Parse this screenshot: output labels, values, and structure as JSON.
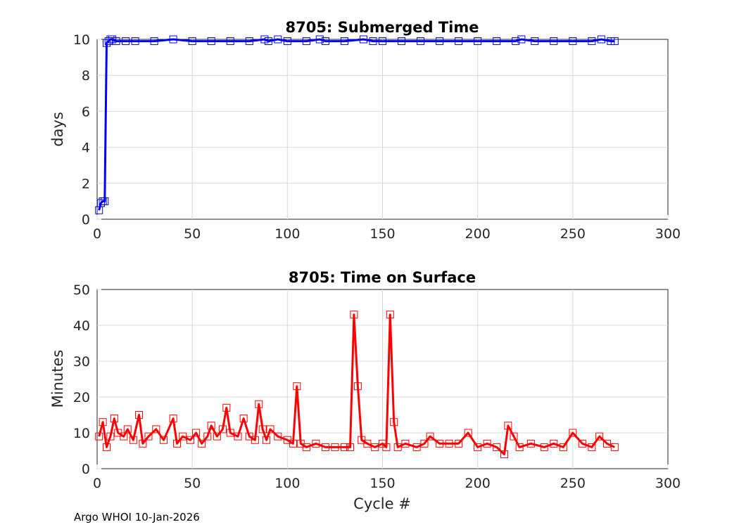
{
  "footer": {
    "note": "Argo WHOI 10-Jan-2026"
  },
  "chart_data": [
    {
      "type": "line",
      "title": "8705: Submerged Time",
      "xlabel": "",
      "ylabel": "days",
      "xlim": [
        0,
        300
      ],
      "ylim": [
        0,
        10
      ],
      "xticks": [
        0,
        50,
        100,
        150,
        200,
        250,
        300
      ],
      "yticks": [
        0,
        2,
        4,
        6,
        8,
        10
      ],
      "grid": true,
      "marker": "square",
      "color": "#0000ff",
      "series": [
        {
          "name": "Submerged Time",
          "points": [
            [
              1,
              0.5
            ],
            [
              2,
              0.9
            ],
            [
              3,
              1.0
            ],
            [
              4,
              1.0
            ],
            [
              5,
              9.8
            ],
            [
              6,
              9.9
            ],
            [
              7,
              10.0
            ],
            [
              8,
              10.0
            ],
            [
              10,
              9.9
            ],
            [
              15,
              9.9
            ],
            [
              20,
              9.9
            ],
            [
              30,
              9.9
            ],
            [
              40,
              10.0
            ],
            [
              50,
              9.9
            ],
            [
              60,
              9.9
            ],
            [
              70,
              9.9
            ],
            [
              80,
              9.9
            ],
            [
              88,
              10.0
            ],
            [
              90,
              9.9
            ],
            [
              95,
              10.0
            ],
            [
              100,
              9.9
            ],
            [
              110,
              9.9
            ],
            [
              117,
              10.0
            ],
            [
              120,
              9.9
            ],
            [
              130,
              9.9
            ],
            [
              140,
              10.0
            ],
            [
              145,
              9.9
            ],
            [
              150,
              9.9
            ],
            [
              160,
              9.9
            ],
            [
              170,
              9.9
            ],
            [
              180,
              9.9
            ],
            [
              190,
              9.9
            ],
            [
              200,
              9.9
            ],
            [
              210,
              9.9
            ],
            [
              220,
              9.9
            ],
            [
              223,
              10.0
            ],
            [
              230,
              9.9
            ],
            [
              240,
              9.9
            ],
            [
              250,
              9.9
            ],
            [
              260,
              9.9
            ],
            [
              265,
              10.0
            ],
            [
              270,
              9.9
            ],
            [
              272,
              9.9
            ]
          ]
        }
      ]
    },
    {
      "type": "line",
      "title": "8705: Time on Surface",
      "xlabel": "Cycle #",
      "ylabel": "Minutes",
      "xlim": [
        0,
        300
      ],
      "ylim": [
        0,
        50
      ],
      "xticks": [
        0,
        50,
        100,
        150,
        200,
        250,
        300
      ],
      "yticks": [
        0,
        10,
        20,
        30,
        40,
        50
      ],
      "grid": true,
      "marker": "square",
      "color": "#ff0000",
      "series": [
        {
          "name": "Time on Surface",
          "points": [
            [
              1,
              9
            ],
            [
              3,
              13
            ],
            [
              5,
              6
            ],
            [
              7,
              9
            ],
            [
              9,
              14
            ],
            [
              11,
              10
            ],
            [
              14,
              9
            ],
            [
              16,
              11
            ],
            [
              19,
              8
            ],
            [
              22,
              15
            ],
            [
              24,
              7
            ],
            [
              27,
              9
            ],
            [
              31,
              11
            ],
            [
              35,
              8
            ],
            [
              40,
              14
            ],
            [
              42,
              7
            ],
            [
              45,
              9
            ],
            [
              49,
              8
            ],
            [
              52,
              10
            ],
            [
              55,
              7
            ],
            [
              58,
              9
            ],
            [
              60,
              12
            ],
            [
              63,
              9
            ],
            [
              66,
              11
            ],
            [
              68,
              17
            ],
            [
              70,
              10
            ],
            [
              74,
              9
            ],
            [
              77,
              14
            ],
            [
              80,
              9
            ],
            [
              83,
              8
            ],
            [
              85,
              18
            ],
            [
              87,
              11
            ],
            [
              89,
              8
            ],
            [
              91,
              11
            ],
            [
              95,
              9
            ],
            [
              100,
              8
            ],
            [
              103,
              7
            ],
            [
              105,
              23
            ],
            [
              107,
              7
            ],
            [
              110,
              6
            ],
            [
              115,
              7
            ],
            [
              120,
              6
            ],
            [
              125,
              6
            ],
            [
              130,
              6
            ],
            [
              133,
              6
            ],
            [
              135,
              43
            ],
            [
              137,
              23
            ],
            [
              139,
              8
            ],
            [
              142,
              7
            ],
            [
              146,
              6
            ],
            [
              150,
              7
            ],
            [
              152,
              6
            ],
            [
              154,
              43
            ],
            [
              156,
              13
            ],
            [
              158,
              6
            ],
            [
              162,
              7
            ],
            [
              168,
              6
            ],
            [
              172,
              7
            ],
            [
              175,
              9
            ],
            [
              180,
              7
            ],
            [
              185,
              7
            ],
            [
              190,
              7
            ],
            [
              195,
              10
            ],
            [
              200,
              6
            ],
            [
              205,
              7
            ],
            [
              210,
              6
            ],
            [
              214,
              4
            ],
            [
              216,
              12
            ],
            [
              219,
              9
            ],
            [
              222,
              6
            ],
            [
              228,
              7
            ],
            [
              235,
              6
            ],
            [
              240,
              7
            ],
            [
              245,
              6
            ],
            [
              250,
              10
            ],
            [
              255,
              7
            ],
            [
              260,
              6
            ],
            [
              264,
              9
            ],
            [
              268,
              7
            ],
            [
              272,
              6
            ]
          ]
        }
      ]
    }
  ]
}
